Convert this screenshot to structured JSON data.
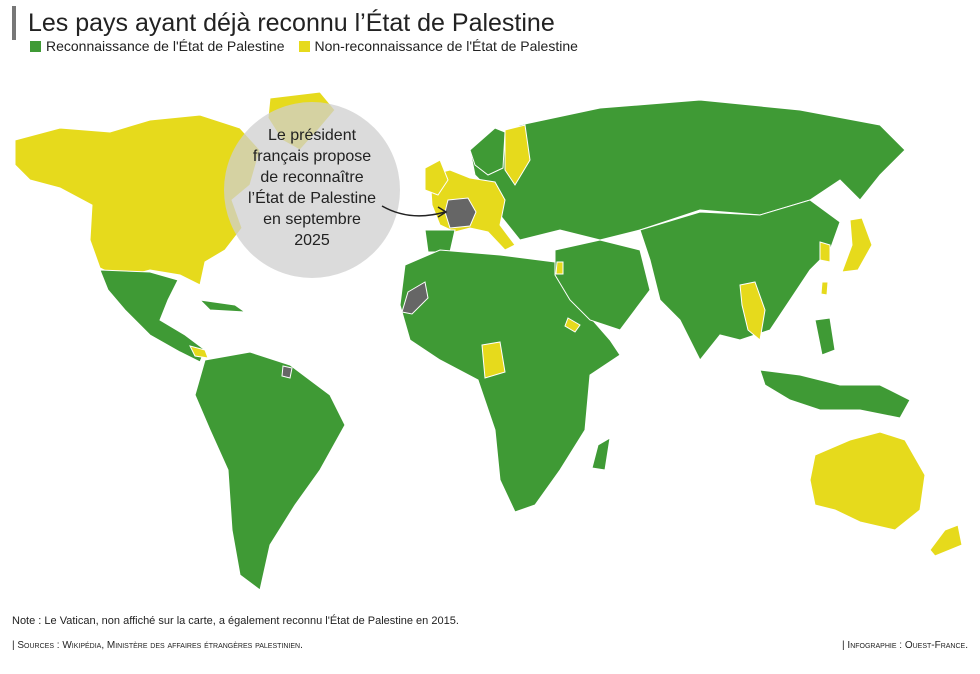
{
  "title": "Les pays ayant déjà reconnu l’État de Palestine",
  "legend": [
    {
      "label": "Reconnaissance de l'État de Palestine",
      "color": "#3f9a35"
    },
    {
      "label": "Non-reconnaissance de l'État de Palestine",
      "color": "#e6da1c"
    }
  ],
  "callout": {
    "lines": [
      "Le président",
      "français propose",
      "de reconnaître",
      "l’État de Palestine",
      "en septembre",
      "2025"
    ]
  },
  "note": "Note : Le Vatican, non affiché sur la carte, a également reconnu l'État de Palestine en 2015.",
  "sources": "| Sources : Wikipédia, Ministère des affaires étrangères palestinien.",
  "credit": "| Infographie : Ouest-France."
}
